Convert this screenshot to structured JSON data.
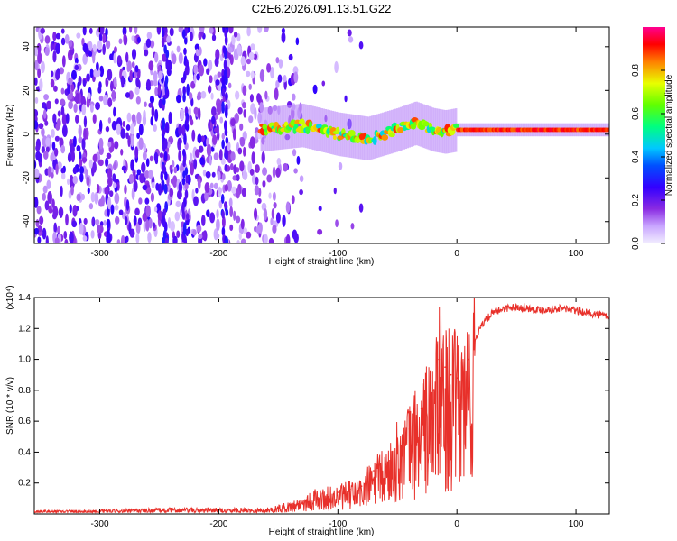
{
  "title": "C2E6.2026.091.13.51.G22",
  "chart_data": [
    {
      "type": "heatmap",
      "title": "C2E6.2026.091.13.51.G22",
      "xlabel": "Height of straight line (km)",
      "ylabel": "Frequency (Hz)",
      "xlim": [
        -355,
        128
      ],
      "ylim": [
        -50,
        49
      ],
      "xticks": [
        -300,
        -200,
        -100,
        0,
        100
      ],
      "yticks": [
        -40,
        -20,
        0,
        20,
        40
      ],
      "colorbar": {
        "label": "Normalized spectral amplitude",
        "range": [
          0,
          1
        ],
        "ticks": [
          0.0,
          0.2,
          0.4,
          0.6,
          0.8
        ],
        "colormap": [
          "#f0f0ff",
          "#c8a8ff",
          "#8a2be2",
          "#5a00ff",
          "#0000ff",
          "#00c8ff",
          "#00ff80",
          "#80ff00",
          "#ffff00",
          "#ff8000",
          "#ff0000",
          "#ff00a0"
        ]
      },
      "regions": [
        {
          "name": "open-loop noise",
          "x_range": [
            -355,
            -140
          ],
          "freq_range": [
            -50,
            49
          ],
          "amplitude": "0.1-0.25 scattered"
        },
        {
          "name": "tracked carrier",
          "x_range": [
            -165,
            128
          ],
          "center_freq": [
            [
              -165,
              2
            ],
            [
              -130,
              4
            ],
            [
              -100,
              0
            ],
            [
              -75,
              -2
            ],
            [
              -50,
              2
            ],
            [
              -35,
              5
            ],
            [
              -20,
              2
            ],
            [
              -10,
              1
            ],
            [
              0,
              2
            ],
            [
              50,
              2
            ],
            [
              128,
              2
            ]
          ],
          "amplitude": "0.4-0.95"
        }
      ]
    },
    {
      "type": "line",
      "xlabel": "Height of straight line (km)",
      "ylabel": "SNR (10 * v/v)",
      "y_scale_label": "(x10⁴)",
      "xlim": [
        -355,
        128
      ],
      "ylim": [
        0,
        1.4
      ],
      "xticks": [
        -300,
        -200,
        -100,
        0,
        100
      ],
      "yticks": [
        0.2,
        0.4,
        0.6,
        0.8,
        1.0,
        1.2,
        1.4
      ],
      "color": "#e8302a",
      "series": [
        {
          "name": "SNR",
          "x": [
            -355,
            -300,
            -250,
            -200,
            -160,
            -140,
            -120,
            -100,
            -90,
            -80,
            -70,
            -60,
            -50,
            -40,
            -30,
            -20,
            -15,
            -10,
            -5,
            0,
            5,
            10,
            15,
            20,
            30,
            40,
            50,
            70,
            90,
            110,
            128
          ],
          "y": [
            0.02,
            0.02,
            0.03,
            0.03,
            0.03,
            0.06,
            0.12,
            0.14,
            0.16,
            0.18,
            0.28,
            0.32,
            0.45,
            0.55,
            0.68,
            0.8,
            1.0,
            0.95,
            0.9,
            0.88,
            0.9,
            1.0,
            1.12,
            1.22,
            1.3,
            1.33,
            1.34,
            1.32,
            1.33,
            1.3,
            1.28
          ]
        }
      ]
    }
  ]
}
